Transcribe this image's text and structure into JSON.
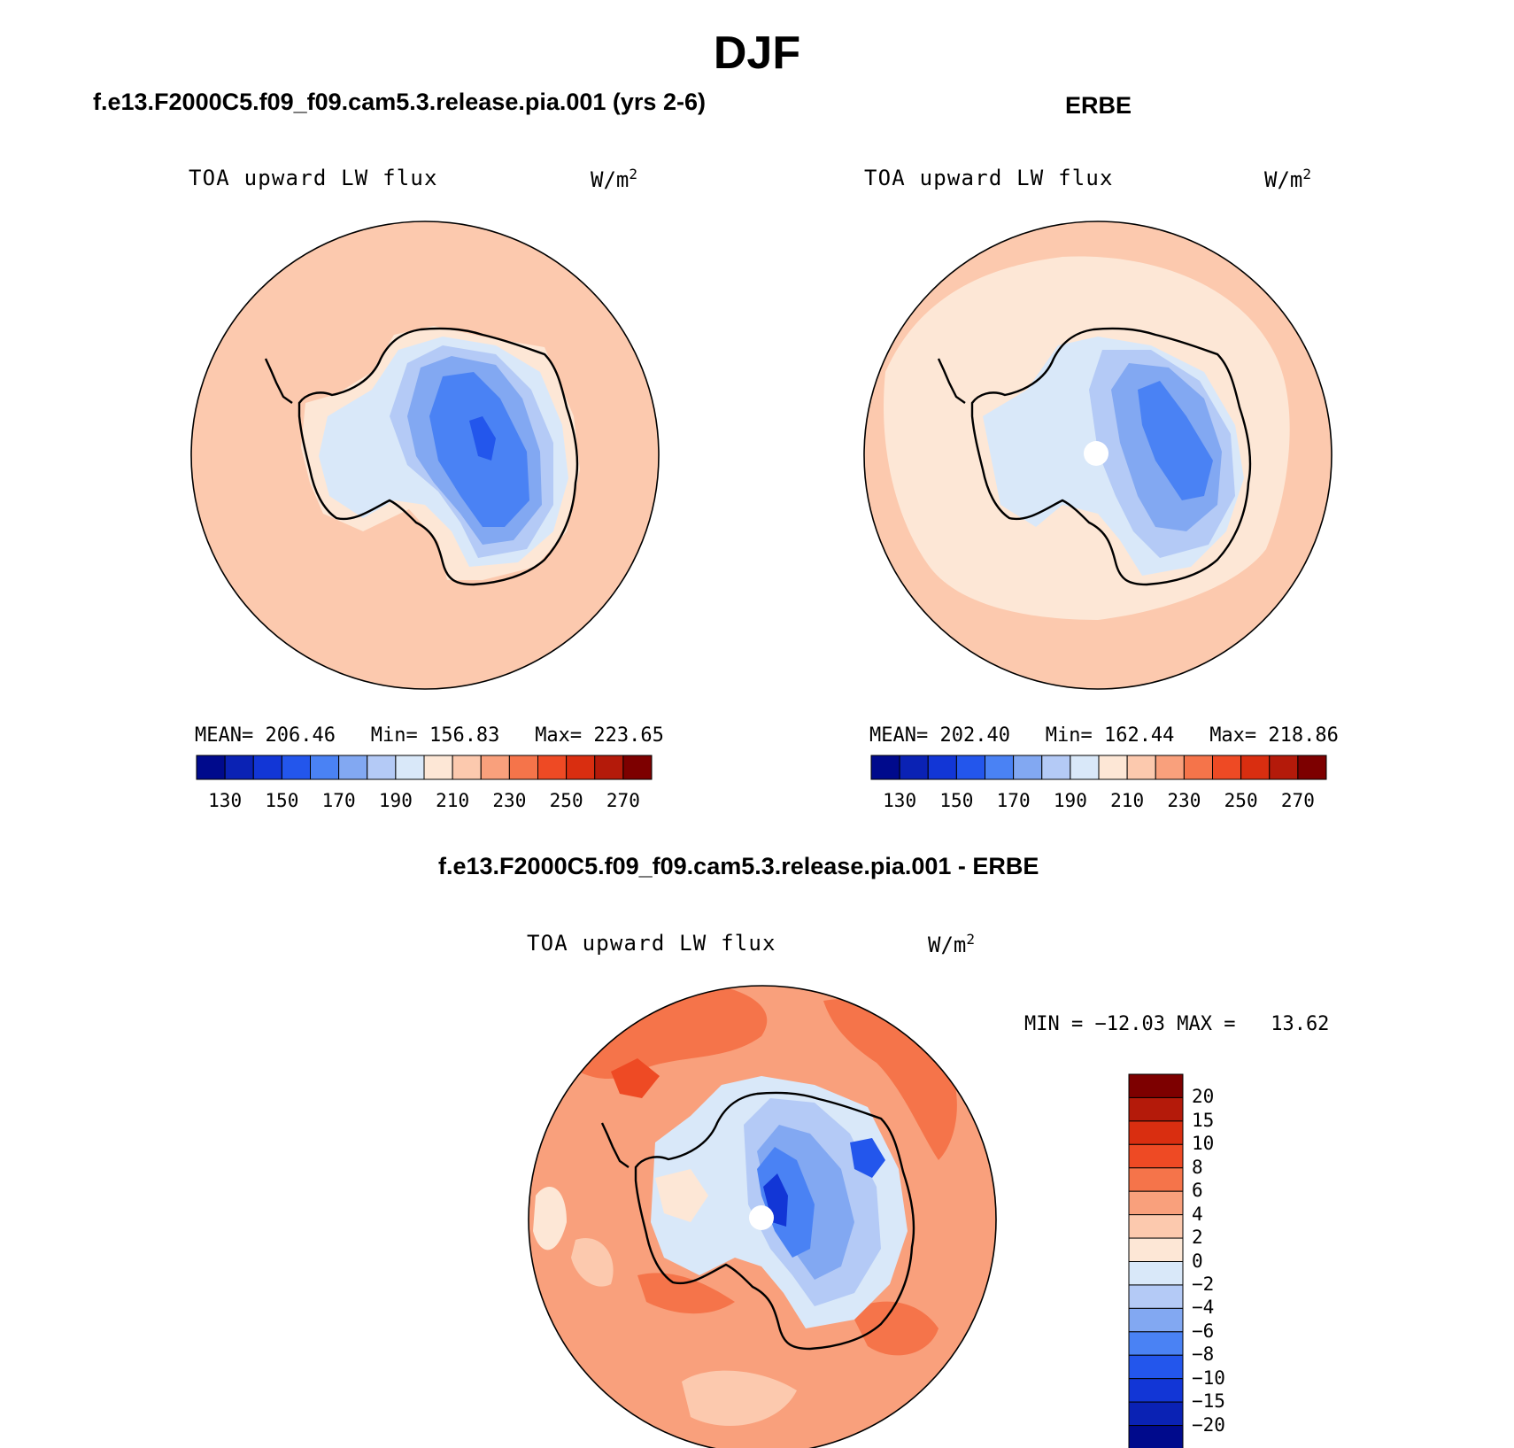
{
  "title": "DJF",
  "panels": {
    "model": {
      "case": "f.e13.F2000C5.f09_f09.cam5.3.release.pia.001 (yrs 2-6)",
      "variable": "TOA upward LW flux",
      "units": "W/m",
      "units_exp": "2",
      "stats": {
        "mean_label": "MEAN=",
        "mean": "206.46",
        "min_label": "Min=",
        "min": "156.83",
        "max_label": "Max=",
        "max": "223.65"
      }
    },
    "obs": {
      "case": "ERBE",
      "variable": "TOA upward LW flux",
      "units": "W/m",
      "units_exp": "2",
      "stats": {
        "mean_label": "MEAN=",
        "mean": "202.40",
        "min_label": "Min=",
        "min": "162.44",
        "max_label": "Max=",
        "max": "218.86"
      }
    },
    "diff": {
      "case": "f.e13.F2000C5.f09_f09.cam5.3.release.pia.001 - ERBE",
      "variable": "TOA upward LW flux",
      "units": "W/m",
      "units_exp": "2",
      "minmax": {
        "min_label": "MIN =",
        "min": "−12.03",
        "max_label": "MAX =",
        "max": "13.62"
      }
    }
  },
  "colorbars": {
    "abs": {
      "ticks": [
        "130",
        "150",
        "170",
        "190",
        "210",
        "230",
        "250",
        "270"
      ],
      "colors": [
        "#000a8c",
        "#0a22b4",
        "#1236d6",
        "#2356ec",
        "#4a82f4",
        "#82a8f2",
        "#b4caf6",
        "#d9e8f9",
        "#fde7d6",
        "#fcc9ae",
        "#f9a07c",
        "#f5744a",
        "#ee4a24",
        "#d92e10",
        "#b41a0a",
        "#7d0000"
      ]
    },
    "diff": {
      "ticks": [
        "20",
        "15",
        "10",
        "8",
        "6",
        "4",
        "2",
        "0",
        "−2",
        "−4",
        "−6",
        "−8",
        "−10",
        "−15",
        "−20"
      ],
      "colors": [
        "#7d0000",
        "#b41a0a",
        "#d92e10",
        "#ee4a24",
        "#f5744a",
        "#f9a07c",
        "#fcc9ae",
        "#fde7d6",
        "#d9e8f9",
        "#b4caf6",
        "#82a8f2",
        "#4a82f4",
        "#2356ec",
        "#1236d6",
        "#0a22b4",
        "#000a8c"
      ]
    }
  },
  "map_colors": {
    "ocean_model": "#fcc9ae",
    "ocean_obs": "#fde7d6",
    "ocean_diff": "#f9a07c",
    "ocean_diff_strong": "#f5744a",
    "coast": "#000000"
  }
}
